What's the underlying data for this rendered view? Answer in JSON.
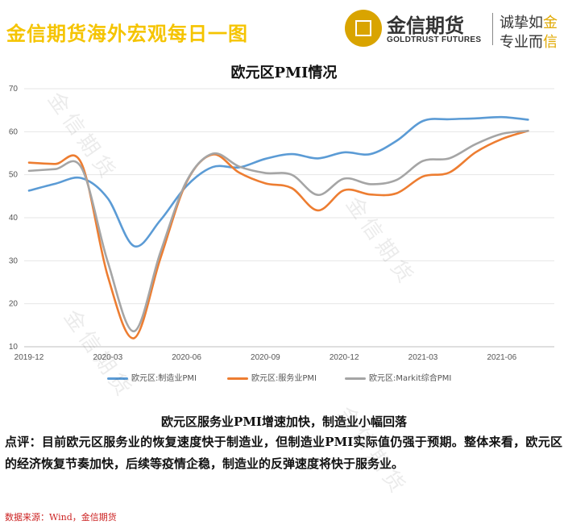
{
  "header": {
    "title": "金信期货海外宏观每日一图",
    "brand_cn": "金信期货",
    "brand_en": "GOLDTRUST FUTURES",
    "slogan_line1_a": "诚挚如",
    "slogan_line1_b": "金",
    "slogan_line2_a": "专业而",
    "slogan_line2_b": "信"
  },
  "watermark_text": "金信期货",
  "chart_data": {
    "type": "line",
    "title": "欧元区PMI情况",
    "xlabel": "",
    "ylabel": "",
    "ylim": [
      10,
      70
    ],
    "yticks": [
      10,
      20,
      30,
      40,
      50,
      60,
      70
    ],
    "xlim": [
      "2019-12",
      "2021-08"
    ],
    "xticks": [
      "2019-12",
      "2020-03",
      "2020-06",
      "2020-09",
      "2020-12",
      "2021-03",
      "2021-06"
    ],
    "grid": "horizontal",
    "legend_position": "bottom",
    "x": [
      "2019-12",
      "2020-01",
      "2020-02",
      "2020-03",
      "2020-04",
      "2020-05",
      "2020-06",
      "2020-07",
      "2020-08",
      "2020-09",
      "2020-10",
      "2020-11",
      "2020-12",
      "2021-01",
      "2021-02",
      "2021-03",
      "2021-04",
      "2021-05",
      "2021-06",
      "2021-07",
      "2021-08"
    ],
    "series": [
      {
        "name": "欧元区:制造业PMI",
        "color": "#5b9bd5",
        "values": [
          46.3,
          47.9,
          49.2,
          44.5,
          33.4,
          39.4,
          47.4,
          51.8,
          51.7,
          53.7,
          54.8,
          53.8,
          55.2,
          54.8,
          57.9,
          62.5,
          62.9,
          63.1,
          63.4,
          62.8,
          null
        ]
      },
      {
        "name": "欧元区:服务业PMI",
        "color": "#ed7d31",
        "values": [
          52.8,
          52.5,
          52.6,
          26.4,
          12.0,
          30.5,
          48.3,
          54.7,
          50.5,
          48.0,
          46.9,
          41.7,
          46.4,
          45.4,
          45.7,
          49.6,
          50.5,
          55.2,
          58.3,
          60.2,
          null
        ]
      },
      {
        "name": "欧元区:Markit综合PMI",
        "color": "#a5a5a5",
        "values": [
          50.9,
          51.3,
          51.6,
          29.7,
          13.6,
          31.9,
          48.5,
          54.9,
          51.9,
          50.4,
          50.0,
          45.3,
          49.1,
          47.8,
          48.8,
          53.2,
          53.8,
          57.1,
          59.5,
          60.2,
          null
        ]
      }
    ]
  },
  "headline": "欧元区服务业PMI增速加快，制造业小幅回落",
  "comment_label": "点评：",
  "comment_text": "目前欧元区服务业的恢复速度快于制造业，但制造业PMI实际值仍强于预期。整体来看，欧元区的经济恢复节奏加快，后续等疫情企稳，制造业的反弹速度将快于服务业。",
  "source": "数据来源：Wind，金信期货"
}
